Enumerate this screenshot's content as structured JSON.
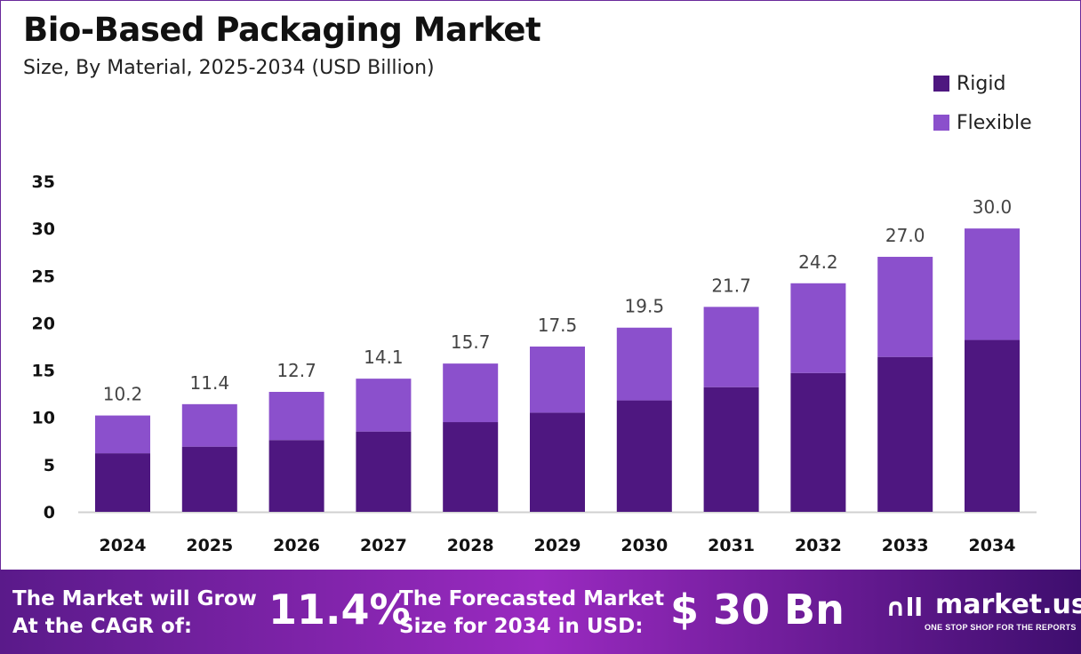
{
  "chart_data": {
    "type": "stacked-bar",
    "title": "Bio-Based Packaging Market",
    "subtitle": "Size, By Material, 2025-2034 (USD Billion)",
    "categories": [
      "2024",
      "2025",
      "2026",
      "2027",
      "2028",
      "2029",
      "2030",
      "2031",
      "2032",
      "2033",
      "2034"
    ],
    "series": [
      {
        "name": "Rigid",
        "color": "#4e1780",
        "values": [
          6.2,
          6.9,
          7.6,
          8.5,
          9.5,
          10.5,
          11.8,
          13.2,
          14.7,
          16.4,
          18.2
        ]
      },
      {
        "name": "Flexible",
        "color": "#8b50cc",
        "values": [
          4.0,
          4.5,
          5.1,
          5.6,
          6.2,
          7.0,
          7.7,
          8.5,
          9.5,
          10.6,
          11.8
        ]
      }
    ],
    "totals": [
      "10.2",
      "11.4",
      "12.7",
      "14.1",
      "15.7",
      "17.5",
      "19.5",
      "21.7",
      "24.2",
      "27.0",
      "30.0"
    ],
    "yticks": [
      "0",
      "5",
      "10",
      "15",
      "20",
      "25",
      "30",
      "35"
    ],
    "ylim": [
      0,
      35
    ],
    "grid": false,
    "legend": "top-right"
  },
  "banner": {
    "cagr_label_1": "The Market will Grow",
    "cagr_label_2": "At the CAGR of:",
    "cagr_value": "11.4%",
    "forecast_label_1": "The Forecasted Market",
    "forecast_label_2": "Size for 2034 in USD:",
    "forecast_value": "$ 30 Bn",
    "logo_name": "market.us",
    "logo_tagline": "ONE STOP SHOP FOR THE REPORTS"
  }
}
